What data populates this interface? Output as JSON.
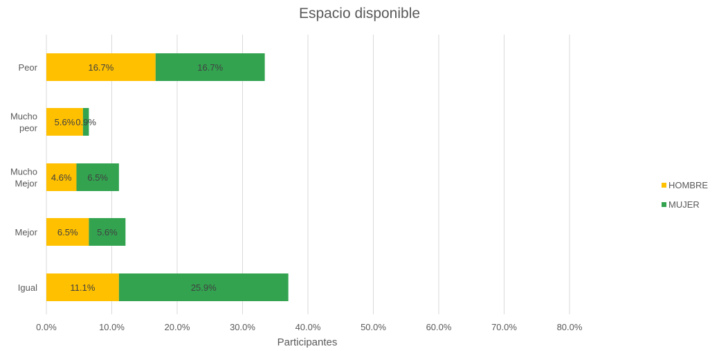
{
  "chart_data": {
    "type": "bar",
    "orientation": "horizontal",
    "stacked": true,
    "title": "Espacio disponible",
    "xlabel": "Participantes",
    "ylabel": "",
    "xlim": [
      0,
      80
    ],
    "x_ticks": [
      "0.0%",
      "10.0%",
      "20.0%",
      "30.0%",
      "40.0%",
      "50.0%",
      "60.0%",
      "70.0%",
      "80.0%"
    ],
    "grid": true,
    "legend_position": "right",
    "categories": [
      "Peor",
      "Mucho peor",
      "Mucho Mejor",
      "Mejor",
      "Igual"
    ],
    "category_lines": [
      [
        "Peor"
      ],
      [
        "Mucho",
        "peor"
      ],
      [
        "Mucho",
        "Mejor"
      ],
      [
        "Mejor"
      ],
      [
        "Igual"
      ]
    ],
    "series": [
      {
        "name": "HOMBRE",
        "color": "#FFC000",
        "values": [
          16.7,
          5.6,
          4.6,
          6.5,
          11.1
        ],
        "labels": [
          "16.7%",
          "5.6%",
          "4.6%",
          "6.5%",
          "11.1%"
        ]
      },
      {
        "name": "MUJER",
        "color": "#33A350",
        "values": [
          16.7,
          0.9,
          6.5,
          5.6,
          25.9
        ],
        "labels": [
          "16.7%",
          "0.9%",
          "6.5%",
          "5.6%",
          "25.9%"
        ]
      }
    ]
  }
}
